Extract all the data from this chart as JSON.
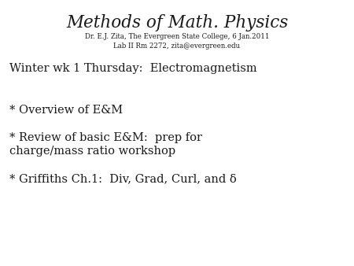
{
  "title_main": "Methods of Math. Physics",
  "subtitle1": "Dr. E.J. Zita, The Evergreen State College, 6 Jan.2011",
  "subtitle2": "Lab II Rm 2272, zita@evergreen.edu",
  "line1": "Winter wk 1 Thursday:  Electromagnetism",
  "line2": "* Overview of E&M",
  "line3a": "* Review of basic E&M:  prep for",
  "line3b": "charge/mass ratio workshop",
  "line4": "* Griffiths Ch.1:  Div, Grad, Curl, and δ",
  "bg_color": "#ffffff",
  "text_color": "#1a1a1a",
  "title_fontsize": 15.5,
  "subtitle_fontsize": 6.2,
  "body_fontsize": 10.5
}
